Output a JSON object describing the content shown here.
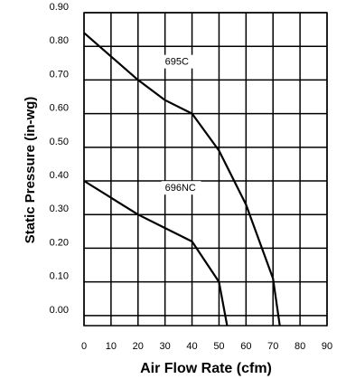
{
  "chart_data": {
    "type": "line",
    "xlabel": "Air Flow Rate (cfm)",
    "ylabel": "Static Pressure (in-wg)",
    "xlim": [
      0,
      90
    ],
    "ylim": [
      -0.03,
      0.9
    ],
    "x_ticks": [
      "0",
      "10",
      "20",
      "30",
      "40",
      "50",
      "60",
      "70",
      "80",
      "90"
    ],
    "y_ticks": [
      "0.90",
      "0.80",
      "0.70",
      "0.60",
      "0.50",
      "0.40",
      "0.30",
      "0.20",
      "0.10",
      "0.00"
    ],
    "grid": true,
    "legend": "none",
    "series": [
      {
        "name": "695C",
        "points": [
          [
            0,
            0.84
          ],
          [
            10,
            0.77
          ],
          [
            20,
            0.7
          ],
          [
            30,
            0.64
          ],
          [
            40,
            0.6
          ],
          [
            50,
            0.49
          ],
          [
            60,
            0.33
          ],
          [
            70,
            0.11
          ],
          [
            72.5,
            -0.03
          ]
        ],
        "label_at": [
          34,
          0.745
        ]
      },
      {
        "name": "696NC",
        "points": [
          [
            0,
            0.4
          ],
          [
            10,
            0.35
          ],
          [
            20,
            0.3
          ],
          [
            30,
            0.26
          ],
          [
            40,
            0.22
          ],
          [
            50,
            0.1
          ],
          [
            53,
            -0.03
          ]
        ],
        "label_at": [
          34,
          0.37
        ]
      }
    ]
  }
}
